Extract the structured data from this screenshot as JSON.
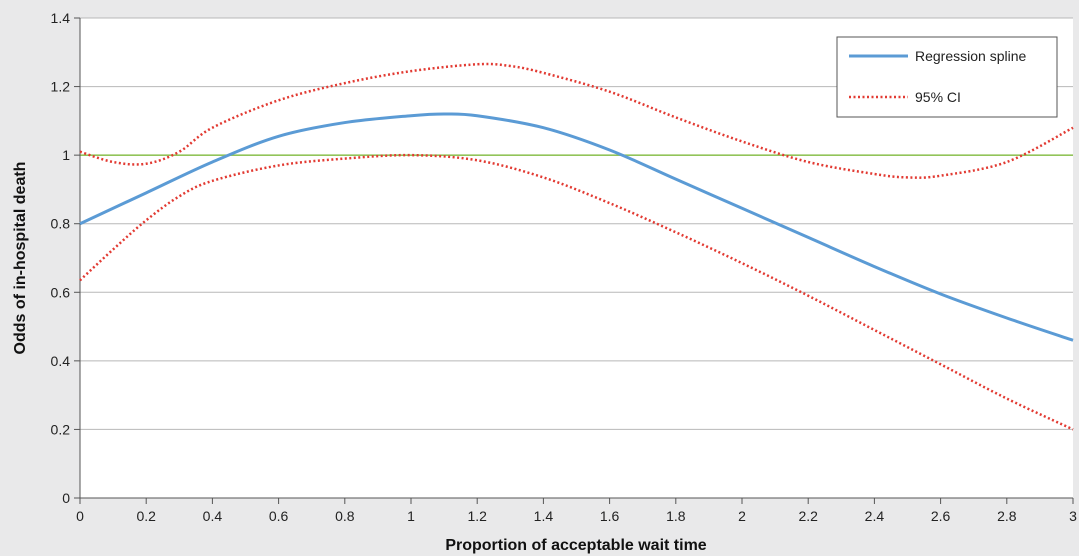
{
  "chart_data": {
    "type": "line",
    "xlabel": "Proportion of acceptable wait time",
    "ylabel": "Odds of in-hospital death",
    "xlim": [
      0,
      3
    ],
    "ylim": [
      0,
      1.4
    ],
    "x_ticks": [
      0,
      0.2,
      0.4,
      0.6,
      0.8,
      1,
      1.2,
      1.4,
      1.6,
      1.8,
      2,
      2.2,
      2.4,
      2.6,
      2.8,
      3
    ],
    "x_tick_labels": [
      "0",
      "0.2",
      "0.4",
      "0.6",
      "0.8",
      "1",
      "1.2",
      "1.4",
      "1.6",
      "1.8",
      "2",
      "2.2",
      "2.4",
      "2.6",
      "2.8",
      "3"
    ],
    "y_ticks": [
      0,
      0.2,
      0.4,
      0.6,
      0.8,
      1,
      1.2,
      1.4
    ],
    "y_tick_labels": [
      "0",
      "0.2",
      "0.4",
      "0.6",
      "0.8",
      "1",
      "1.2",
      "1.4"
    ],
    "grid": "horizontal",
    "legend_position": "top-right",
    "reference_line": {
      "y": 1,
      "color": "#92c45a"
    },
    "series": [
      {
        "name": "Regression spline",
        "style": "solid",
        "color": "#5b9bd5",
        "x": [
          0,
          0.2,
          0.4,
          0.6,
          0.8,
          1.0,
          1.1,
          1.2,
          1.4,
          1.6,
          1.8,
          2.0,
          2.2,
          2.4,
          2.6,
          2.8,
          3.0
        ],
        "y": [
          0.8,
          0.89,
          0.98,
          1.055,
          1.095,
          1.115,
          1.12,
          1.115,
          1.08,
          1.015,
          0.93,
          0.845,
          0.76,
          0.675,
          0.595,
          0.525,
          0.46
        ]
      },
      {
        "name": "95% CI",
        "style": "dotted",
        "color": "#e23a32",
        "x": [
          0,
          0.1,
          0.2,
          0.3,
          0.4,
          0.6,
          0.8,
          1.0,
          1.2,
          1.3,
          1.4,
          1.6,
          1.8,
          2.0,
          2.2,
          2.4,
          2.5,
          2.6,
          2.8,
          3.0
        ],
        "y": [
          1.01,
          0.98,
          0.975,
          1.01,
          1.08,
          1.16,
          1.21,
          1.245,
          1.265,
          1.26,
          1.24,
          1.185,
          1.11,
          1.04,
          0.98,
          0.945,
          0.935,
          0.94,
          0.98,
          1.08
        ]
      },
      {
        "name": "",
        "style": "dotted",
        "color": "#e23a32",
        "x": [
          0,
          0.1,
          0.2,
          0.3,
          0.4,
          0.6,
          0.8,
          1.0,
          1.2,
          1.4,
          1.6,
          1.8,
          2.0,
          2.2,
          2.4,
          2.6,
          2.8,
          3.0
        ],
        "y": [
          0.635,
          0.725,
          0.81,
          0.88,
          0.925,
          0.97,
          0.99,
          1.0,
          0.985,
          0.935,
          0.86,
          0.775,
          0.685,
          0.59,
          0.49,
          0.39,
          0.29,
          0.2
        ]
      }
    ]
  }
}
